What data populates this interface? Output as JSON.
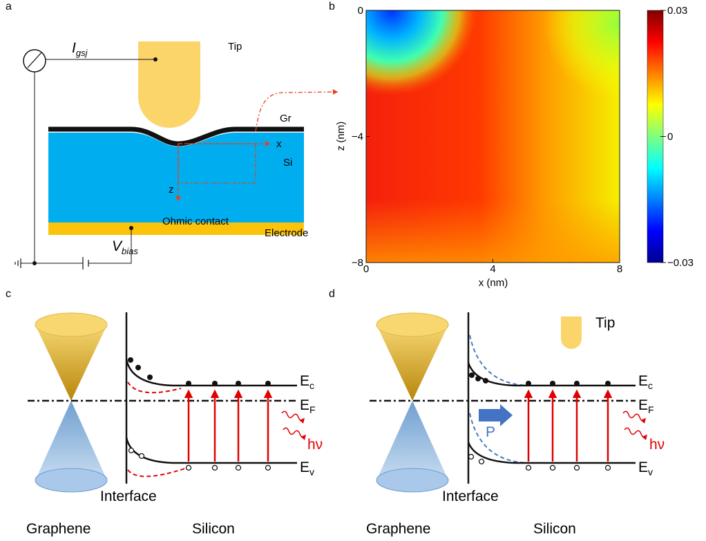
{
  "panel_a": {
    "label": "a",
    "current": {
      "main": "I",
      "sub": "gsj"
    },
    "tip": "Tip",
    "graphene": "Gr",
    "x_axis": "x",
    "silicon": "Si",
    "z_axis": "z",
    "contact": "Ohmic contact",
    "electrode": "Electrode",
    "bias": {
      "main": "V",
      "sub": "bias"
    }
  },
  "panel_b": {
    "label": "b",
    "type": "heatmap",
    "xlabel": "x (nm)",
    "ylabel": "z (nm)",
    "xlim": [
      0,
      8
    ],
    "ylim": [
      -8,
      0
    ],
    "xticks": [
      0,
      4,
      8
    ],
    "yticks": [
      0,
      {
        "value": -4,
        "label": "−4"
      },
      {
        "value": -8,
        "label": "−8"
      }
    ],
    "colorbar": {
      "lim": [
        -0.03,
        0.03
      ],
      "ticks": [
        0.03,
        0,
        {
          "value": -0.03,
          "label": "−0.03"
        }
      ]
    }
  },
  "panel_c": {
    "label": "c",
    "conduction": {
      "main": "E",
      "sub": "c"
    },
    "fermi": {
      "main": "E",
      "sub": "F"
    },
    "valence": {
      "main": "E",
      "sub": "v"
    },
    "photon": "hν",
    "interface": "Interface",
    "left": "Graphene",
    "right": "Silicon"
  },
  "panel_d": {
    "label": "d",
    "tip": "Tip",
    "polarization": "P",
    "conduction": {
      "main": "E",
      "sub": "c"
    },
    "fermi": {
      "main": "E",
      "sub": "F"
    },
    "valence": {
      "main": "E",
      "sub": "v"
    },
    "photon": "hν",
    "interface": "Interface",
    "left": "Graphene",
    "right": "Silicon"
  }
}
